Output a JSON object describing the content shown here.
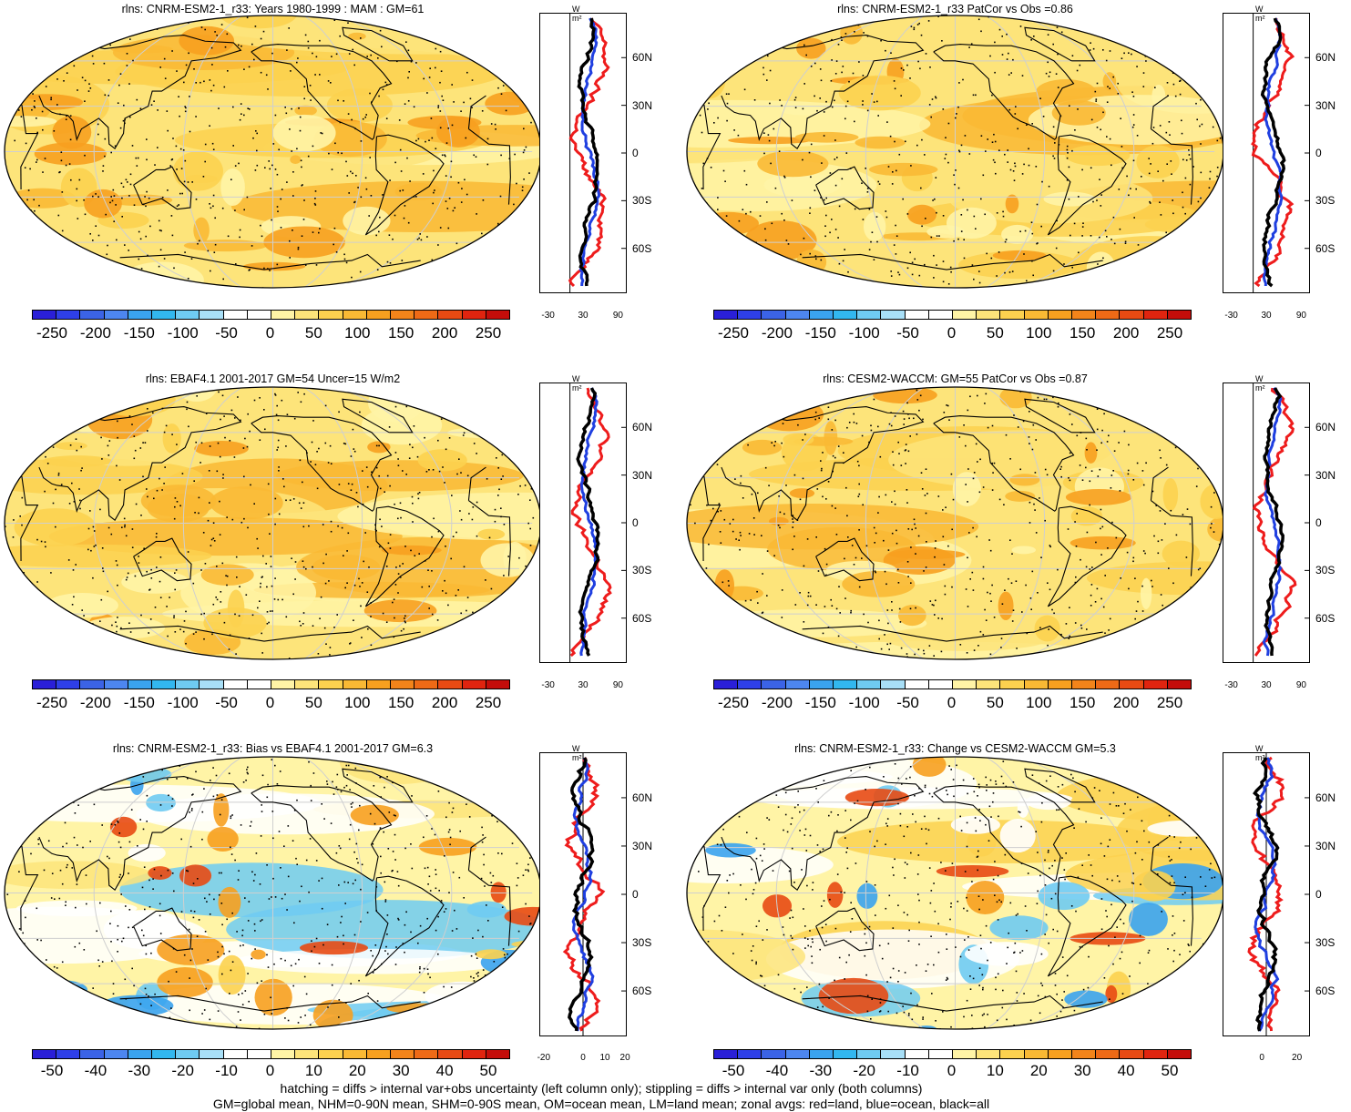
{
  "panels": [
    {
      "title": "rlns: CNRM-ESM2-1_r33: Years 1980-1999 : MAM : GM=61",
      "kind": "abs",
      "xticks": [
        "-30",
        "30",
        "90"
      ]
    },
    {
      "title": "rlns: CNRM-ESM2-1_r33 PatCor vs Obs =0.86",
      "kind": "abs",
      "xticks": [
        "-30",
        "30",
        "90"
      ]
    },
    {
      "title": "rlns: EBAF4.1 2001-2017 GM=54 Uncer=15 W/m2",
      "kind": "abs",
      "xticks": [
        "-30",
        "30",
        "90"
      ]
    },
    {
      "title": "rlns: CESM2-WACCM: GM=55 PatCor vs Obs =0.87",
      "kind": "abs",
      "xticks": [
        "-30",
        "30",
        "90"
      ]
    },
    {
      "title": "rlns: CNRM-ESM2-1_r33: Bias vs EBAF4.1 2001-2017 GM=6.3",
      "kind": "diff",
      "xticks": [
        "-20",
        "0",
        "10",
        "20"
      ]
    },
    {
      "title": "rlns: CNRM-ESM2-1_r33: Change vs CESM2-WACCM GM=5.3",
      "kind": "diff",
      "xticks": [
        "0",
        "20"
      ]
    }
  ],
  "lat_labels": [
    "60N",
    "30N",
    "0",
    "30S",
    "60S"
  ],
  "units": "W m²",
  "colorbars": {
    "abs_labels": [
      "-250",
      "-200",
      "-150",
      "-100",
      "-50",
      "0",
      "50",
      "100",
      "150",
      "200",
      "250"
    ],
    "diff_labels": [
      "-50",
      "-40",
      "-30",
      "-20",
      "-10",
      "0",
      "10",
      "20",
      "30",
      "40",
      "50"
    ],
    "colors": [
      "#2a1fd8",
      "#2e3fe8",
      "#3b63e6",
      "#4d86f0",
      "#3aa3ee",
      "#32b7ef",
      "#6fcbf2",
      "#a8dff7",
      "#ffffff",
      "#ffffff",
      "#fff4a6",
      "#fde47a",
      "#fcd14f",
      "#f9b934",
      "#f7a01f",
      "#f3841a",
      "#ee6a16",
      "#e84a13",
      "#e0240f",
      "#c40d0a"
    ]
  },
  "legend_colors": {
    "land": "#ee1c1c",
    "ocean": "#1f3fe0",
    "all": "#000000"
  },
  "footnotes": [
    "hatching = diffs > internal var+obs uncertainty (left column only); stippling = diffs > internal var only (both columns)",
    "GM=global mean, NHM=0-90N mean, SHM=0-90S mean, OM=ocean mean, LM=land mean; zonal avgs: red=land, blue=ocean, black=all"
  ]
}
